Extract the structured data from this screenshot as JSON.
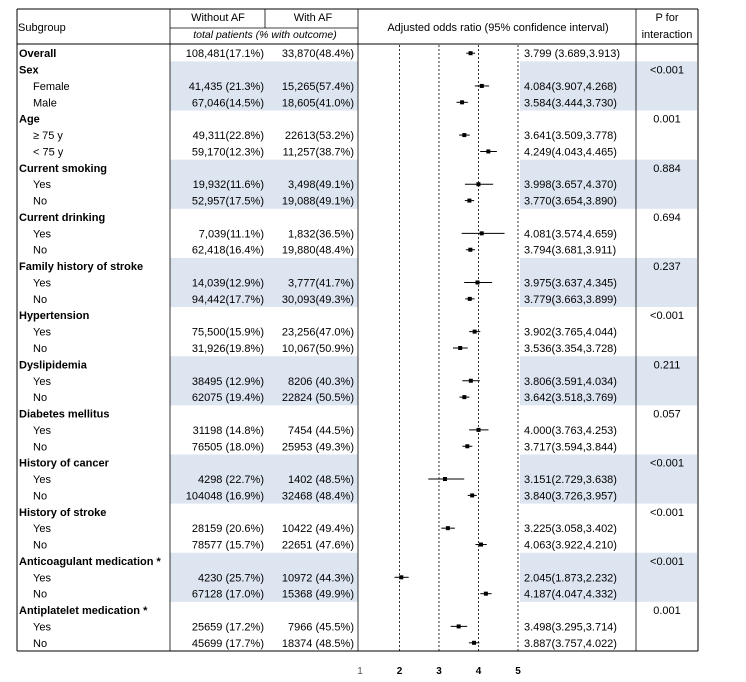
{
  "header": {
    "subgroup": "Subgroup",
    "without_af": "Without AF",
    "with_af": "With AF",
    "subheader": "total patients (% with outcome)",
    "or_header": "Adjusted odds ratio (95% confidence interval)",
    "p_header_1": "P for",
    "p_header_2": "interaction"
  },
  "chart_data": {
    "type": "forest",
    "axis": {
      "ticks": [
        1,
        2,
        3,
        4,
        5
      ],
      "range": [
        1,
        5
      ],
      "reference_lines": [
        2,
        3,
        4,
        5
      ]
    },
    "rows": [
      {
        "kind": "overall",
        "label": "Overall",
        "without": "108,481(17.1%)",
        "with": "33,870(48.4%)",
        "or_text": "3.799 (3.689,3.913)",
        "est": 3.799,
        "lo": 3.689,
        "hi": 3.913,
        "p": ""
      },
      {
        "kind": "group",
        "label": "Sex",
        "p": "<0.001"
      },
      {
        "kind": "sub",
        "label": "Female",
        "without": "41,435 (21.3%)",
        "with": "15,265(57.4%)",
        "or_text": "4.084(3.907,4.268)",
        "est": 4.084,
        "lo": 3.907,
        "hi": 4.268
      },
      {
        "kind": "sub",
        "label": "Male",
        "without": "67,046(14.5%)",
        "with": "18,605(41.0%)",
        "or_text": "3.584(3.444,3.730)",
        "est": 3.584,
        "lo": 3.444,
        "hi": 3.73
      },
      {
        "kind": "group",
        "label": "Age",
        "p": "0.001"
      },
      {
        "kind": "sub",
        "label": "≥ 75 y",
        "without": "49,311(22.8%)",
        "with": "22613(53.2%)",
        "or_text": "3.641(3.509,3.778)",
        "est": 3.641,
        "lo": 3.509,
        "hi": 3.778
      },
      {
        "kind": "sub",
        "label": "< 75 y",
        "without": "59,170(12.3%)",
        "with": "11,257(38.7%)",
        "or_text": "4.249(4.043,4.465)",
        "est": 4.249,
        "lo": 4.043,
        "hi": 4.465
      },
      {
        "kind": "group",
        "label": "Current smoking",
        "p": "0.884"
      },
      {
        "kind": "sub",
        "label": "Yes",
        "without": "19,932(11.6%)",
        "with": "3,498(49.1%)",
        "or_text": "3.998(3.657,4.370)",
        "est": 3.998,
        "lo": 3.657,
        "hi": 4.37
      },
      {
        "kind": "sub",
        "label": "No",
        "without": "52,957(17.5%)",
        "with": "19,088(49.1%)",
        "or_text": "3.770(3.654,3.890)",
        "est": 3.77,
        "lo": 3.654,
        "hi": 3.89
      },
      {
        "kind": "group",
        "label": "Current drinking",
        "p": "0.694"
      },
      {
        "kind": "sub",
        "label": "Yes",
        "without": "7,039(11.1%)",
        "with": "1,832(36.5%)",
        "or_text": "4.081(3.574,4.659)",
        "est": 4.081,
        "lo": 3.574,
        "hi": 4.659
      },
      {
        "kind": "sub",
        "label": "No",
        "without": "62,418(16.4%)",
        "with": "19,880(48.4%)",
        "or_text": "3.794(3.681,3.911)",
        "est": 3.794,
        "lo": 3.681,
        "hi": 3.911
      },
      {
        "kind": "group",
        "label": "Family history of stroke",
        "p": "0.237"
      },
      {
        "kind": "sub",
        "label": "Yes",
        "without": "14,039(12.9%)",
        "with": "3,777(41.7%)",
        "or_text": "3.975(3.637,4.345)",
        "est": 3.975,
        "lo": 3.637,
        "hi": 4.345
      },
      {
        "kind": "sub",
        "label": "No",
        "without": "94,442(17.7%)",
        "with": "30,093(49.3%)",
        "or_text": "3.779(3.663,3.899)",
        "est": 3.779,
        "lo": 3.663,
        "hi": 3.899
      },
      {
        "kind": "group",
        "label": "Hypertension",
        "p": "<0.001"
      },
      {
        "kind": "sub",
        "label": "Yes",
        "without": "75,500(15.9%)",
        "with": "23,256(47.0%)",
        "or_text": "3.902(3.765,4.044)",
        "est": 3.902,
        "lo": 3.765,
        "hi": 4.044
      },
      {
        "kind": "sub",
        "label": "No",
        "without": "31,926(19.8%)",
        "with": "10,067(50.9%)",
        "or_text": "3.536(3.354,3.728)",
        "est": 3.536,
        "lo": 3.354,
        "hi": 3.728
      },
      {
        "kind": "group",
        "label": "Dyslipidemia",
        "p": "0.211"
      },
      {
        "kind": "sub",
        "label": "Yes",
        "without": "38495 (12.9%)",
        "with": "8206 (40.3%)",
        "or_text": "3.806(3.591,4.034)",
        "est": 3.806,
        "lo": 3.591,
        "hi": 4.034
      },
      {
        "kind": "sub",
        "label": "No",
        "without": "62075 (19.4%)",
        "with": "22824 (50.5%)",
        "or_text": "3.642(3.518,3.769)",
        "est": 3.642,
        "lo": 3.518,
        "hi": 3.769
      },
      {
        "kind": "group",
        "label": "Diabetes mellitus",
        "p": "0.057"
      },
      {
        "kind": "sub",
        "label": "Yes",
        "without": "31198 (14.8%)",
        "with": "7454 (44.5%)",
        "or_text": "4.000(3.763,4.253)",
        "est": 4.0,
        "lo": 3.763,
        "hi": 4.253
      },
      {
        "kind": "sub",
        "label": "No",
        "without": "76505 (18.0%)",
        "with": "25953 (49.3%)",
        "or_text": "3.717(3.594,3.844)",
        "est": 3.717,
        "lo": 3.594,
        "hi": 3.844
      },
      {
        "kind": "group",
        "label": "History of cancer",
        "p": "<0.001"
      },
      {
        "kind": "sub",
        "label": "Yes",
        "without": "4298 (22.7%)",
        "with": "1402 (48.5%)",
        "or_text": "3.151(2.729,3.638)",
        "est": 3.151,
        "lo": 2.729,
        "hi": 3.638
      },
      {
        "kind": "sub",
        "label": "No",
        "without": "104048 (16.9%)",
        "with": "32468 (48.4%)",
        "or_text": "3.840(3.726,3.957)",
        "est": 3.84,
        "lo": 3.726,
        "hi": 3.957
      },
      {
        "kind": "group",
        "label": "History of stroke",
        "p": "<0.001"
      },
      {
        "kind": "sub",
        "label": "Yes",
        "without": "28159 (20.6%)",
        "with": "10422 (49.4%)",
        "or_text": "3.225(3.058,3.402)",
        "est": 3.225,
        "lo": 3.058,
        "hi": 3.402
      },
      {
        "kind": "sub",
        "label": "No",
        "without": "78577 (15.7%)",
        "with": "22651 (47.6%)",
        "or_text": "4.063(3.922,4.210)",
        "est": 4.063,
        "lo": 3.922,
        "hi": 4.21
      },
      {
        "kind": "group",
        "label": "Anticoagulant medication *",
        "p": "<0.001"
      },
      {
        "kind": "sub",
        "label": "Yes",
        "without": "4230 (25.7%)",
        "with": "10972 (44.3%)",
        "or_text": "2.045(1.873,2.232)",
        "est": 2.045,
        "lo": 1.873,
        "hi": 2.232
      },
      {
        "kind": "sub",
        "label": "No",
        "without": "67128 (17.0%)",
        "with": "15368 (49.9%)",
        "or_text": "4.187(4.047,4.332)",
        "est": 4.187,
        "lo": 4.047,
        "hi": 4.332
      },
      {
        "kind": "group",
        "label": "Antiplatelet medication *",
        "p": "0.001"
      },
      {
        "kind": "sub",
        "label": "Yes",
        "without": "25659 (17.2%)",
        "with": "7966 (45.5%)",
        "or_text": "3.498(3.295,3.714)",
        "est": 3.498,
        "lo": 3.295,
        "hi": 3.714
      },
      {
        "kind": "sub",
        "label": "No",
        "without": "45699 (17.7%)",
        "with": "18374 (48.5%)",
        "or_text": "3.887(3.757,4.022)",
        "est": 3.887,
        "lo": 3.757,
        "hi": 4.022
      }
    ]
  },
  "colors": {
    "shade": "#dde5f0",
    "line": "#000000",
    "text": "#000000"
  }
}
